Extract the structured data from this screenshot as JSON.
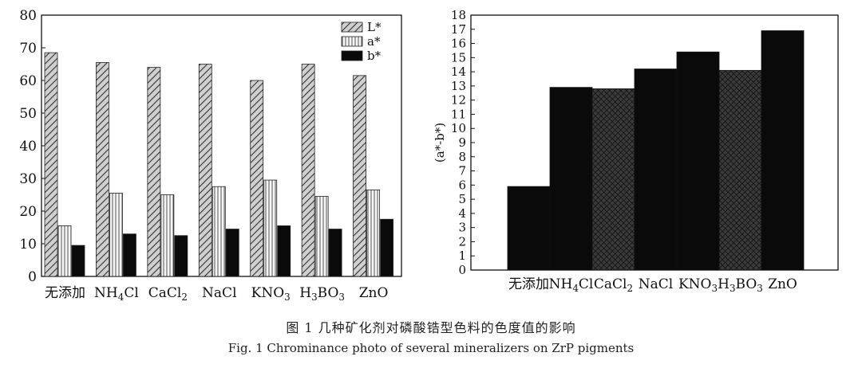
{
  "figure": {
    "caption_cn": "图 1   几种矿化剂对磷酸锆型色料的色度值的影响",
    "caption_en": "Fig. 1   Chrominance photo of several mineralizers on ZrP pigments"
  },
  "chart_data": [
    {
      "type": "bar",
      "categories": [
        {
          "text": "无添加"
        },
        {
          "text": "NH",
          "sub": "4",
          "tail": "Cl"
        },
        {
          "text": "CaCl",
          "sub": "2",
          "tail": ""
        },
        {
          "text": "NaCl"
        },
        {
          "text": "KNO",
          "sub": "3",
          "tail": ""
        },
        {
          "text": "H",
          "sub": "3",
          "tail": "BO",
          "sub2": "3"
        },
        {
          "text": "ZnO"
        }
      ],
      "series": [
        {
          "name": "L*",
          "values": [
            68.5,
            65.5,
            64,
            65,
            60,
            65,
            61.5
          ],
          "pattern": "diagonal"
        },
        {
          "name": "a*",
          "values": [
            15.5,
            25.5,
            25,
            27.5,
            29.5,
            24.5,
            26.5
          ],
          "pattern": "vertical"
        },
        {
          "name": "b*",
          "values": [
            9.5,
            13,
            12.5,
            14.5,
            15.5,
            14.5,
            17.5
          ],
          "pattern": "solid"
        }
      ],
      "ylim": [
        0,
        80
      ],
      "yticks": [
        0,
        10,
        20,
        30,
        40,
        50,
        60,
        70,
        80
      ],
      "ylabel": "",
      "xlabel": "",
      "legend": "top-right"
    },
    {
      "type": "bar",
      "categories": [
        {
          "text": "无添加"
        },
        {
          "text": "NH",
          "sub": "4",
          "tail": "Cl"
        },
        {
          "text": "CaCl",
          "sub": "2",
          "tail": ""
        },
        {
          "text": "NaCl"
        },
        {
          "text": "KNO",
          "sub": "3",
          "tail": ""
        },
        {
          "text": "H",
          "sub": "3",
          "tail": "BO",
          "sub2": "3"
        },
        {
          "text": "ZnO"
        }
      ],
      "values": [
        5.9,
        12.9,
        12.8,
        14.2,
        15.4,
        14.1,
        16.9
      ],
      "fills": [
        "solid",
        "solid",
        "crosshatch",
        "solid",
        "solid",
        "crosshatch",
        "solid"
      ],
      "ylim": [
        0,
        18
      ],
      "yticks": [
        0,
        1,
        2,
        3,
        4,
        5,
        6,
        7,
        8,
        9,
        10,
        11,
        12,
        13,
        14,
        15,
        16,
        17,
        18
      ],
      "ylabel": "(a*-b*)",
      "xlabel": ""
    }
  ]
}
